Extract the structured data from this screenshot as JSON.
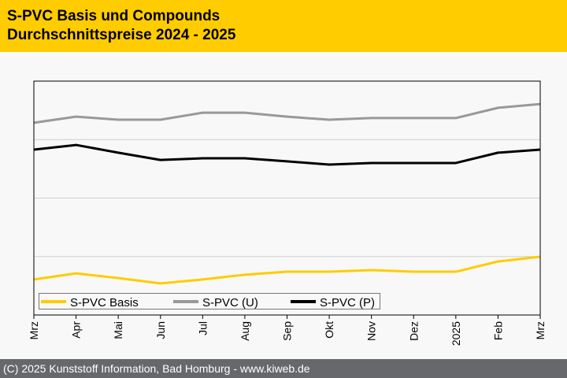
{
  "header": {
    "title": "S-PVC Basis und Compounds",
    "subtitle": "Durchschnittspreise 2024 - 2025"
  },
  "footer": {
    "text": "(C) 2025 Kunststoff Information, Bad Homburg - www.kiweb.de"
  },
  "chart_data": {
    "type": "line",
    "title": "S-PVC Basis und Compounds Durchschnittspreise 2024 - 2025",
    "xlabel": "",
    "ylabel": "",
    "note": "No y-axis labels shown; values are relative index on a 0-100 scale",
    "ylim": [
      0,
      100
    ],
    "grid": true,
    "gridlines": [
      25,
      50,
      75
    ],
    "legend_position": "bottom-left",
    "categories": [
      "Mrz",
      "Apr",
      "Mai",
      "Jun",
      "Jul",
      "Aug",
      "Sep",
      "Okt",
      "Nov",
      "Dez",
      "2025",
      "Feb",
      "Mrz"
    ],
    "series": [
      {
        "name": "S-PVC Basis",
        "color": "#ffcc00",
        "values": [
          15.2,
          17.8,
          15.8,
          13.5,
          15.2,
          17.2,
          18.5,
          18.5,
          19.2,
          18.5,
          18.5,
          22.9,
          24.9
        ]
      },
      {
        "name": "S-PVC (U)",
        "color": "#999999",
        "values": [
          82.2,
          84.8,
          83.5,
          83.5,
          86.5,
          86.5,
          84.8,
          83.5,
          84.2,
          84.2,
          84.2,
          88.6,
          90.2
        ]
      },
      {
        "name": "S-PVC (P)",
        "color": "#000000",
        "values": [
          70.7,
          72.7,
          69.4,
          66.3,
          67.0,
          67.0,
          65.7,
          64.3,
          65.0,
          65.0,
          65.0,
          69.4,
          70.7
        ]
      }
    ]
  }
}
